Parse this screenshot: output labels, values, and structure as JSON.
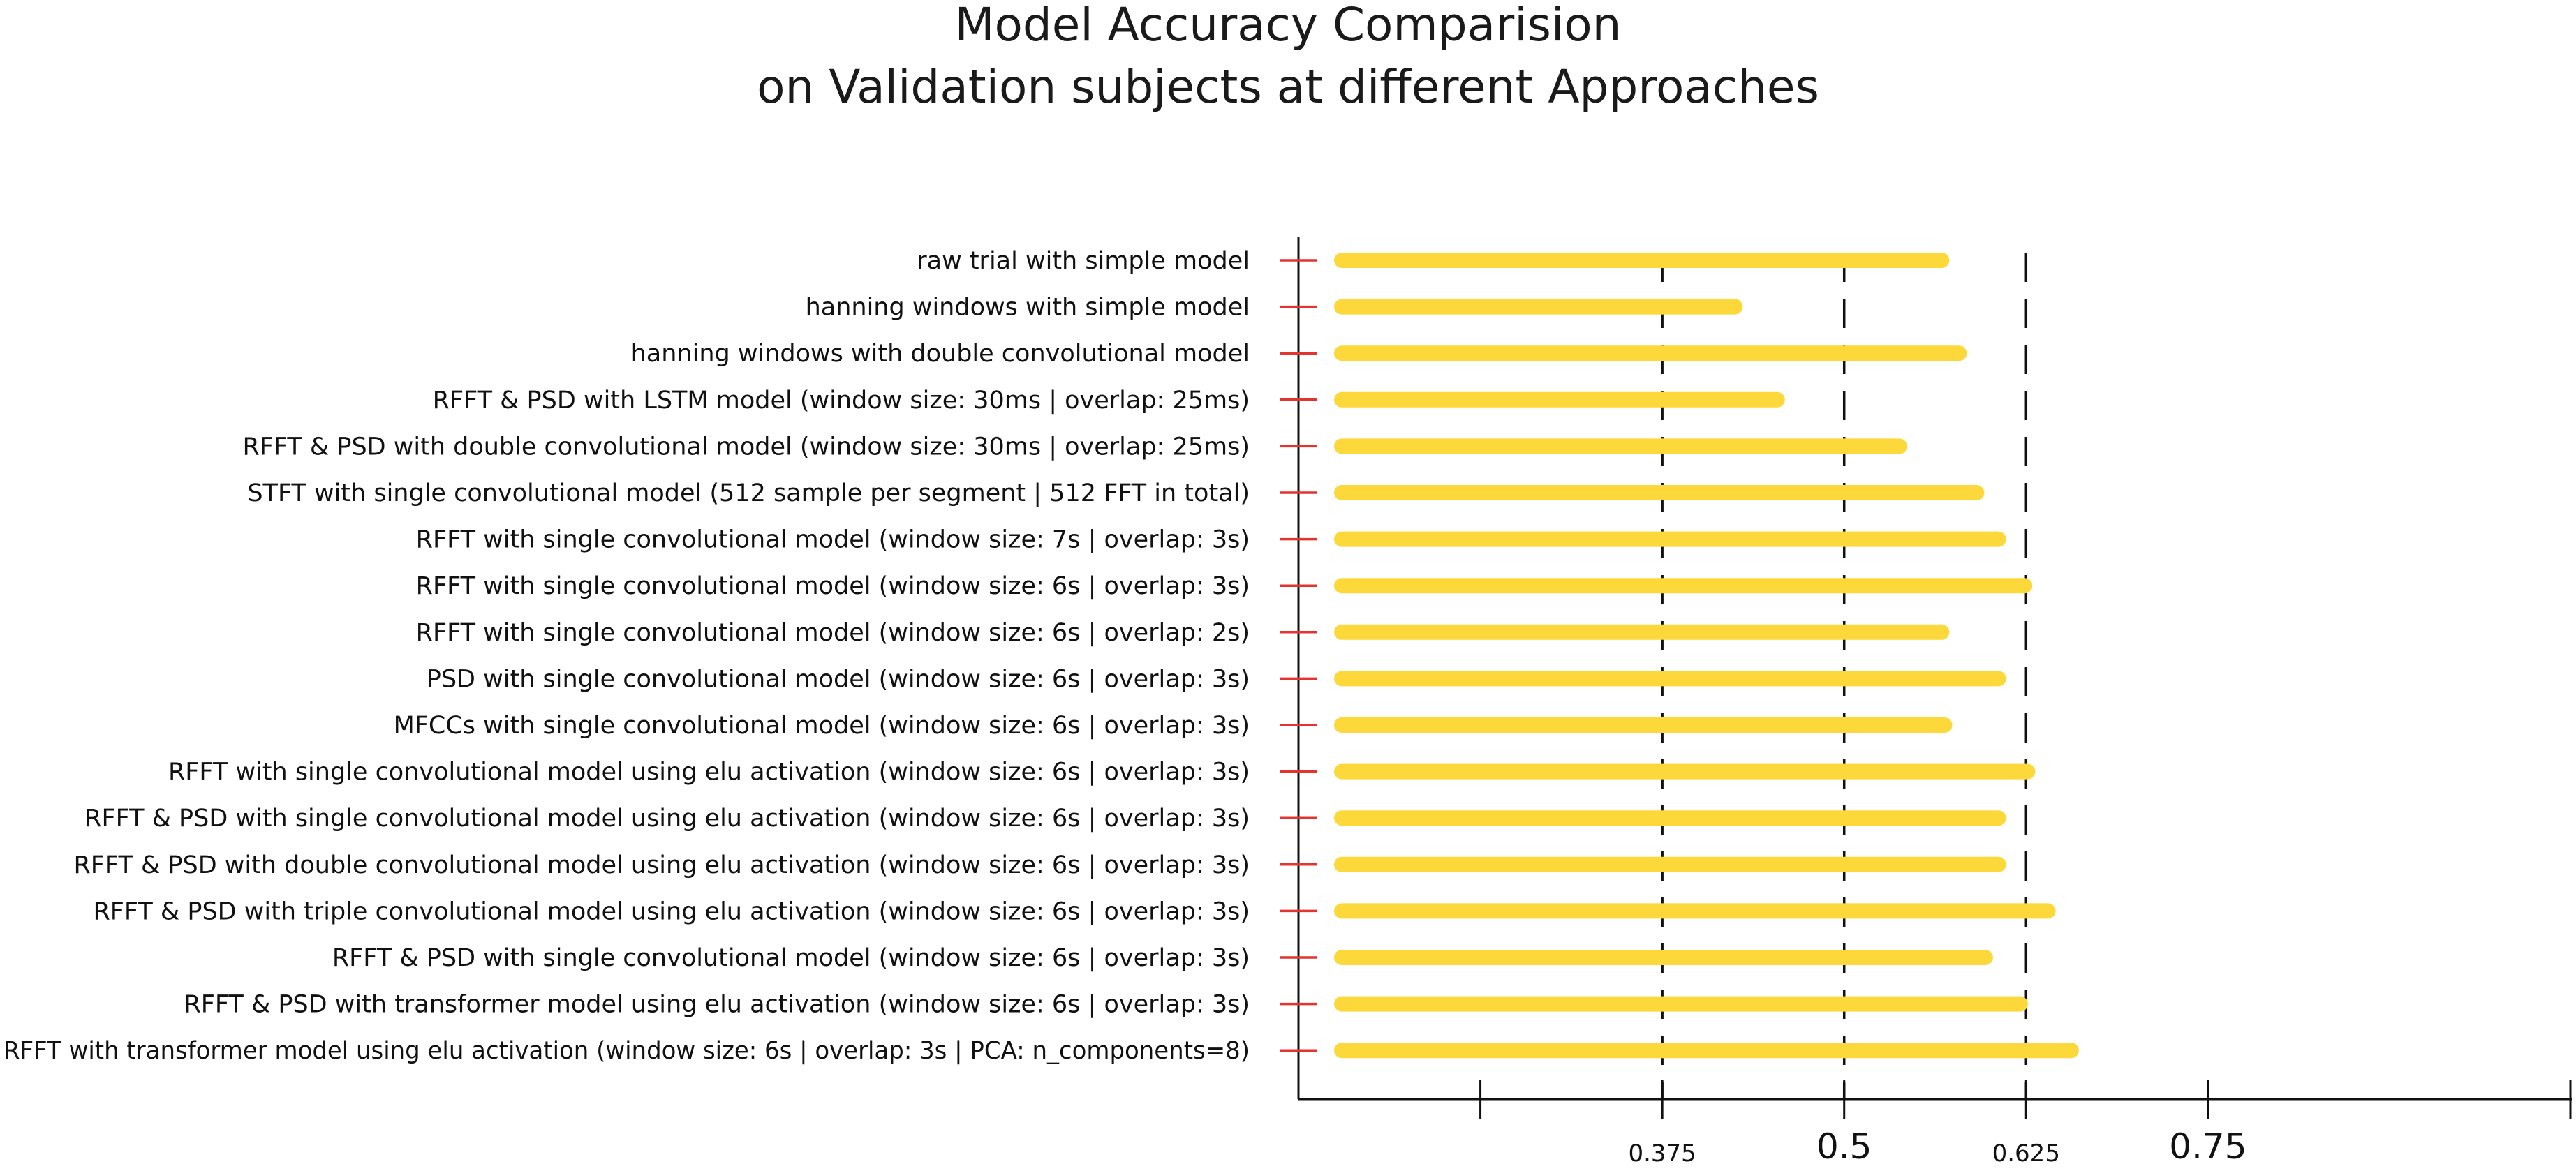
{
  "chart_data": {
    "type": "bar",
    "orientation": "horizontal",
    "title": [
      "Model Accuracy Comparision",
      "on Validation subjects at different Approaches"
    ],
    "xlabel": "",
    "ylabel": "",
    "categories": [
      "raw trial with simple model",
      "hanning windows with simple model",
      "hanning windows with double convolutional model",
      "RFFT & PSD with LSTM model (window size: 30ms | overlap: 25ms)",
      "RFFT & PSD with double convolutional model (window size: 30ms | overlap: 25ms)",
      "STFT with single convolutional model (512 sample per segment | 512 FFT in total)",
      "RFFT with single convolutional model (window size: 7s | overlap: 3s)",
      "RFFT with single convolutional model (window size: 6s | overlap: 3s)",
      "RFFT with single convolutional model (window size: 6s | overlap: 2s)",
      "PSD with single convolutional model (window size: 6s | overlap: 3s)",
      "MFCCs with single convolutional model (window size: 6s | overlap: 3s)",
      "RFFT with single convolutional model using elu activation (window size: 6s | overlap: 3s)",
      "RFFT & PSD with single convolutional model using elu activation (window size: 6s | overlap: 3s)",
      "RFFT & PSD with double convolutional model using elu activation (window size: 6s | overlap: 3s)",
      "RFFT & PSD with triple convolutional model using elu activation (window size: 6s | overlap: 3s)",
      "RFFT & PSD with single convolutional model (window size: 6s | overlap: 3s)",
      "RFFT & PSD with transformer model using elu activation (window size: 6s | overlap: 3s)",
      "RFFT with transformer model using elu activation (window size: 6s | overlap: 3s | PCA: n_components=8)"
    ],
    "values": [
      0.567,
      0.425,
      0.579,
      0.454,
      0.538,
      0.591,
      0.606,
      0.624,
      0.567,
      0.606,
      0.569,
      0.626,
      0.606,
      0.606,
      0.64,
      0.597,
      0.621,
      0.656
    ],
    "xlim": [
      0.125,
      1.0
    ],
    "xticks": [
      {
        "value": 0.25,
        "label": ""
      },
      {
        "value": 0.375,
        "label": "0.375"
      },
      {
        "value": 0.5,
        "label": "0.5"
      },
      {
        "value": 0.625,
        "label": "0.625"
      },
      {
        "value": 0.75,
        "label": "0.75"
      },
      {
        "value": 1.0,
        "label": ""
      }
    ],
    "reference_lines": [
      0.375,
      0.5,
      0.625
    ],
    "bar_color": "#FDD83A",
    "category_tick_color": "#E3342F",
    "grid": false,
    "legend": "none"
  }
}
